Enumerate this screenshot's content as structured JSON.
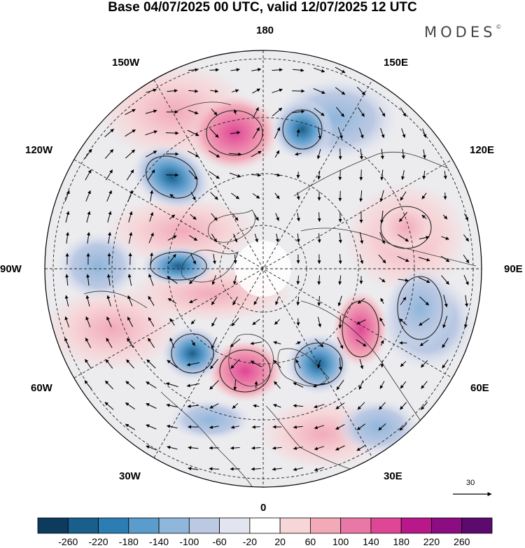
{
  "header": {
    "title": "Base 04/07/2025 00 UTC, valid 12/07/2025 12 UTC",
    "brand": "MODES",
    "brand_mark": "©"
  },
  "map": {
    "projection": "north-polar-stereographic",
    "longitude_labels": {
      "top": "180",
      "bottom": "0",
      "left": "90W",
      "right": "90E",
      "upper_left_1": "150W",
      "upper_left_2": "120W",
      "upper_right_1": "150E",
      "upper_right_2": "120E",
      "lower_left_1": "60W",
      "lower_left_2": "30W",
      "lower_right_1": "60E",
      "lower_right_2": "30E"
    },
    "reference_vector_label": "30",
    "field": "geopotential height anomaly with wind vectors",
    "anomaly_centers": [
      {
        "sign": "negative",
        "location": "Gulf of Alaska / NE Pacific",
        "strength": -200
      },
      {
        "sign": "positive",
        "location": "Bering Sea",
        "strength": 160
      },
      {
        "sign": "negative",
        "location": "Kamchatka / NW Pacific",
        "strength": -140
      },
      {
        "sign": "negative",
        "location": "Hudson Bay",
        "strength": -140
      },
      {
        "sign": "positive",
        "location": "Greenland",
        "strength": 180
      },
      {
        "sign": "negative",
        "location": "Labrador Sea",
        "strength": -140
      },
      {
        "sign": "negative",
        "location": "Scandinavia / Barents",
        "strength": -140
      },
      {
        "sign": "positive",
        "location": "Western Siberia",
        "strength": 120
      },
      {
        "sign": "negative",
        "location": "Central Siberia",
        "strength": -100
      }
    ]
  },
  "colorbar": {
    "ticks": [
      "-260",
      "-220",
      "-180",
      "-140",
      "-100",
      "-60",
      "-20",
      "20",
      "60",
      "100",
      "140",
      "180",
      "220",
      "260"
    ],
    "colors": [
      "#0d3b5e",
      "#1a5f8c",
      "#2d7db5",
      "#5a9ccb",
      "#8fb6db",
      "#bcc9e3",
      "#e2e5f0",
      "#ffffff",
      "#f6d6d8",
      "#f2aab9",
      "#ea78a6",
      "#df4696",
      "#b8188a",
      "#8c0c82",
      "#5c0a6e"
    ]
  }
}
